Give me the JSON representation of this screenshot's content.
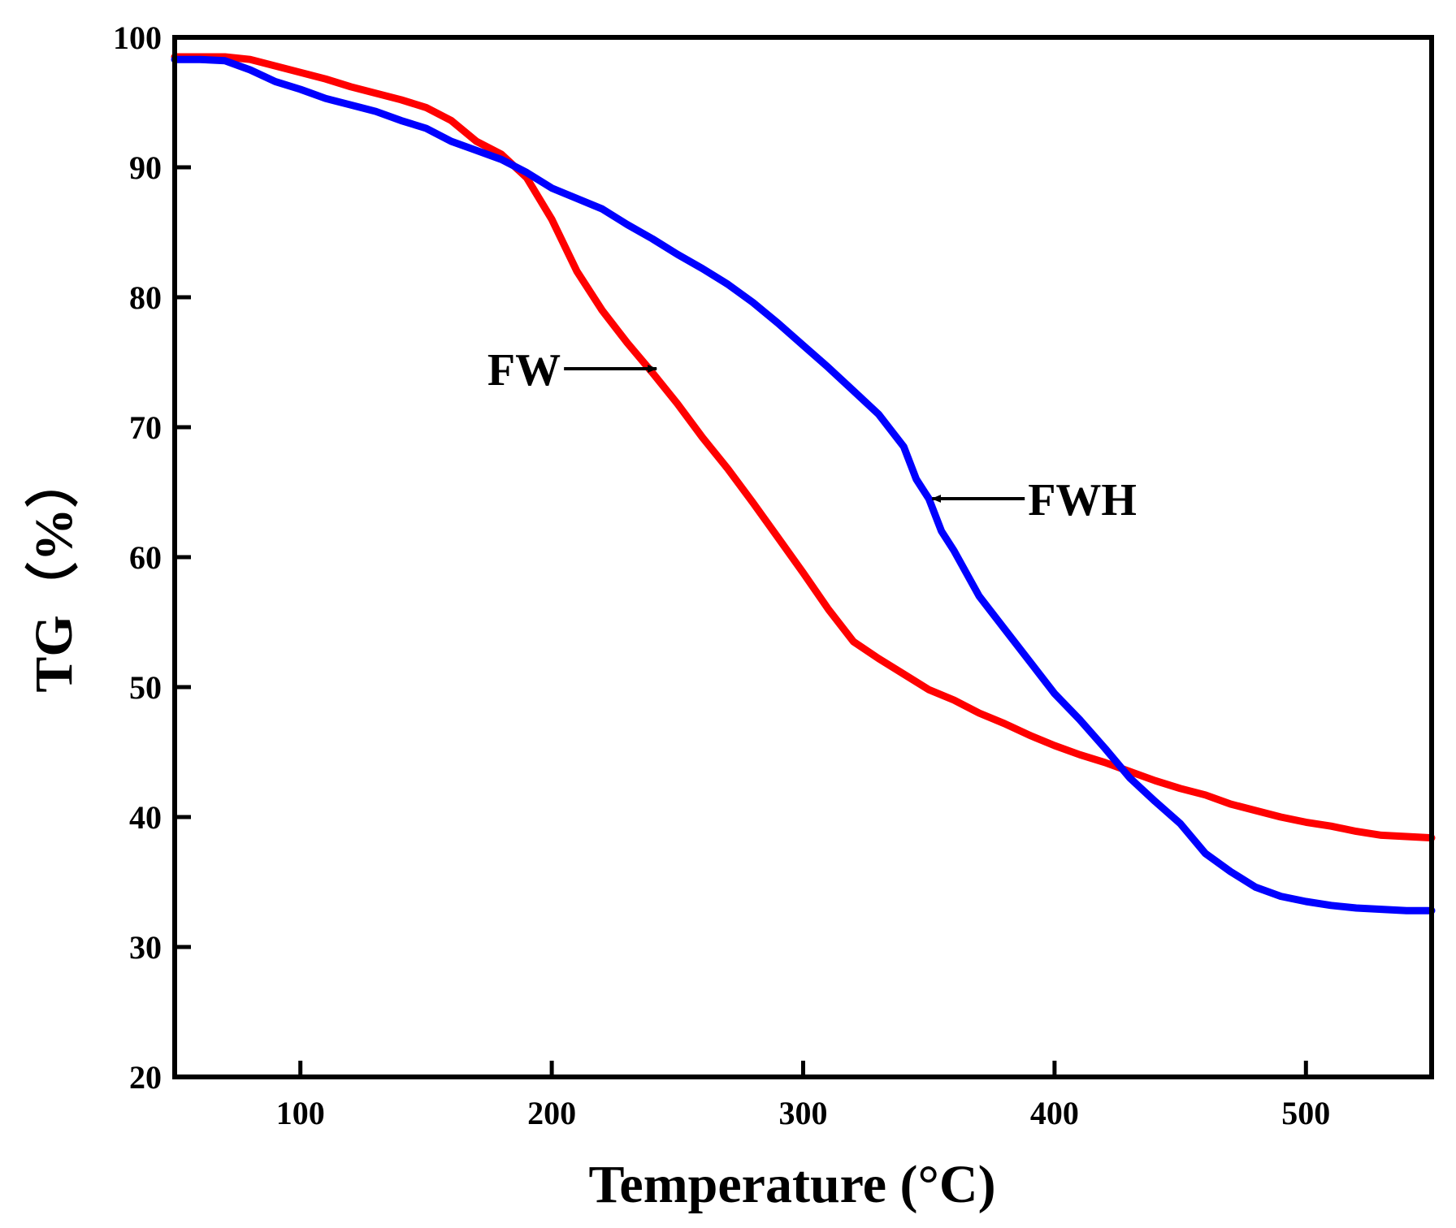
{
  "chart_data": {
    "type": "line",
    "title": "",
    "xlabel": "Temperature (°C)",
    "ylabel": "TG（%）",
    "xlim": [
      50,
      550
    ],
    "ylim": [
      20,
      100
    ],
    "xticks": [
      100,
      200,
      300,
      400,
      500
    ],
    "yticks": [
      20,
      30,
      40,
      50,
      60,
      70,
      80,
      90,
      100
    ],
    "grid": false,
    "legend": "none",
    "series": [
      {
        "name": "FW",
        "color": "#ff0000",
        "x": [
          50,
          60,
          70,
          80,
          90,
          100,
          110,
          120,
          130,
          140,
          150,
          160,
          170,
          180,
          190,
          200,
          210,
          220,
          230,
          240,
          250,
          260,
          270,
          280,
          290,
          300,
          310,
          320,
          330,
          340,
          350,
          360,
          370,
          380,
          390,
          400,
          410,
          420,
          430,
          440,
          450,
          460,
          470,
          480,
          490,
          500,
          510,
          520,
          530,
          540,
          550
        ],
        "y": [
          98.5,
          98.5,
          98.5,
          98.3,
          97.8,
          97.3,
          96.8,
          96.2,
          95.7,
          95.2,
          94.6,
          93.6,
          92.0,
          91.0,
          89.2,
          86.0,
          82.0,
          79.0,
          76.5,
          74.2,
          71.8,
          69.2,
          66.8,
          64.2,
          61.5,
          58.8,
          56.0,
          53.5,
          52.2,
          51.0,
          49.8,
          49.0,
          48.0,
          47.2,
          46.3,
          45.5,
          44.8,
          44.2,
          43.5,
          42.8,
          42.2,
          41.7,
          41.0,
          40.5,
          40.0,
          39.6,
          39.3,
          38.9,
          38.6,
          38.5,
          38.4
        ]
      },
      {
        "name": "FWH",
        "color": "#0000ff",
        "x": [
          50,
          60,
          70,
          80,
          90,
          100,
          110,
          120,
          130,
          140,
          150,
          160,
          170,
          180,
          190,
          200,
          210,
          220,
          230,
          240,
          250,
          260,
          270,
          280,
          290,
          300,
          310,
          320,
          330,
          340,
          345,
          350,
          355,
          360,
          370,
          380,
          390,
          400,
          410,
          420,
          430,
          440,
          450,
          460,
          470,
          480,
          490,
          500,
          510,
          520,
          530,
          540,
          550
        ],
        "y": [
          98.3,
          98.3,
          98.2,
          97.5,
          96.6,
          96.0,
          95.3,
          94.8,
          94.3,
          93.6,
          93.0,
          92.0,
          91.3,
          90.6,
          89.6,
          88.4,
          87.6,
          86.8,
          85.6,
          84.5,
          83.3,
          82.2,
          81.0,
          79.6,
          78.0,
          76.3,
          74.6,
          72.8,
          71.0,
          68.5,
          66.0,
          64.5,
          62.0,
          60.5,
          57.0,
          54.5,
          52.0,
          49.5,
          47.5,
          45.3,
          43.0,
          41.2,
          39.5,
          37.2,
          35.8,
          34.6,
          33.9,
          33.5,
          33.2,
          33.0,
          32.9,
          32.8,
          32.8
        ]
      }
    ],
    "annotations": [
      {
        "text": "FW",
        "points_to": {
          "series": "FW",
          "x": 243,
          "y": 74.5
        },
        "arrow_direction": "right"
      },
      {
        "text": "FWH",
        "points_to": {
          "series": "FWH",
          "x": 350,
          "y": 64.5
        },
        "arrow_direction": "left"
      }
    ]
  }
}
